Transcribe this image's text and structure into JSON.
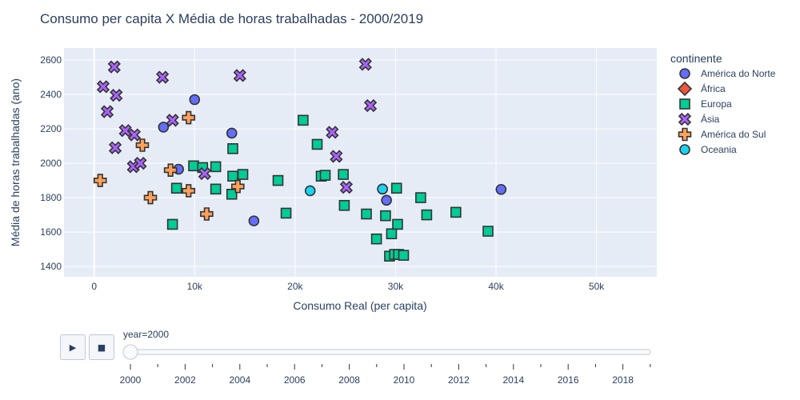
{
  "chart_data": {
    "type": "scatter",
    "title": "Consumo per capita X Média de horas trabalhadas - 2000/2019",
    "xlabel": "Consumo Real (per capita)",
    "ylabel": "Média de horas trabalhadas (ano)",
    "xlim": [
      -3000,
      56000
    ],
    "ylim": [
      1340,
      2670
    ],
    "x_ticks": [
      0,
      10000,
      20000,
      30000,
      40000,
      50000
    ],
    "x_tick_labels": [
      "0",
      "10k",
      "20k",
      "30k",
      "40k",
      "50k"
    ],
    "y_ticks": [
      1400,
      1600,
      1800,
      2000,
      2200,
      2400,
      2600
    ],
    "y_tick_labels": [
      "1400",
      "1600",
      "1800",
      "2000",
      "2200",
      "2400",
      "2600"
    ],
    "grid": true,
    "legend": {
      "title": "continente",
      "position": "right"
    },
    "series": [
      {
        "name": "América do Norte",
        "symbol": "circle",
        "color": "#636efa",
        "points": [
          [
            10000,
            2370
          ],
          [
            6900,
            2210
          ],
          [
            8400,
            1965
          ],
          [
            13700,
            2175
          ],
          [
            15900,
            1665
          ],
          [
            28700,
            1850
          ],
          [
            29100,
            1785
          ],
          [
            40500,
            1848
          ]
        ]
      },
      {
        "name": "África",
        "symbol": "diamond",
        "color": "#ef553b",
        "points": []
      },
      {
        "name": "Europa",
        "symbol": "square",
        "color": "#00cc96",
        "points": [
          [
            9900,
            1985
          ],
          [
            10800,
            1975
          ],
          [
            12100,
            1980
          ],
          [
            13800,
            2085
          ],
          [
            13800,
            1925
          ],
          [
            14800,
            1935
          ],
          [
            13700,
            1820
          ],
          [
            8200,
            1855
          ],
          [
            12100,
            1850
          ],
          [
            7800,
            1645
          ],
          [
            18300,
            1900
          ],
          [
            19100,
            1710
          ],
          [
            20800,
            2250
          ],
          [
            22200,
            2110
          ],
          [
            22600,
            1925
          ],
          [
            23000,
            1930
          ],
          [
            24800,
            1935
          ],
          [
            24900,
            1755
          ],
          [
            27100,
            1705
          ],
          [
            28100,
            1560
          ],
          [
            29000,
            1695
          ],
          [
            29600,
            1590
          ],
          [
            29400,
            1460
          ],
          [
            29900,
            1470
          ],
          [
            30300,
            1470
          ],
          [
            30800,
            1465
          ],
          [
            30100,
            1855
          ],
          [
            30200,
            1645
          ],
          [
            32500,
            1800
          ],
          [
            33100,
            1700
          ],
          [
            36000,
            1715
          ],
          [
            39200,
            1605
          ]
        ]
      },
      {
        "name": "Ásia",
        "symbol": "x",
        "color": "#ab63fa",
        "points": [
          [
            2000,
            2560
          ],
          [
            900,
            2445
          ],
          [
            2200,
            2395
          ],
          [
            1300,
            2300
          ],
          [
            3100,
            2190
          ],
          [
            4000,
            2165
          ],
          [
            2100,
            2090
          ],
          [
            3900,
            1980
          ],
          [
            4600,
            2000
          ],
          [
            6800,
            2500
          ],
          [
            7800,
            2250
          ],
          [
            11000,
            1940
          ],
          [
            14500,
            2510
          ],
          [
            23700,
            2180
          ],
          [
            24100,
            2040
          ],
          [
            25100,
            1860
          ],
          [
            27000,
            2575
          ],
          [
            27500,
            2335
          ]
        ]
      },
      {
        "name": "América do Sul",
        "symbol": "cross",
        "color": "#ffa15a",
        "points": [
          [
            600,
            1900
          ],
          [
            4800,
            2105
          ],
          [
            5600,
            1800
          ],
          [
            7600,
            1960
          ],
          [
            9400,
            2265
          ],
          [
            9400,
            1840
          ],
          [
            11200,
            1705
          ],
          [
            14300,
            1865
          ]
        ]
      },
      {
        "name": "Oceania",
        "symbol": "circle",
        "color": "#19d3f3",
        "points": [
          [
            21500,
            1840
          ],
          [
            28700,
            1850
          ]
        ]
      }
    ]
  },
  "slider": {
    "current_label": "year=2000",
    "ticks": [
      "2000",
      "2002",
      "2004",
      "2006",
      "2008",
      "2010",
      "2012",
      "2014",
      "2016",
      "2018"
    ],
    "play_icon": "▶",
    "stop_icon": "■"
  }
}
